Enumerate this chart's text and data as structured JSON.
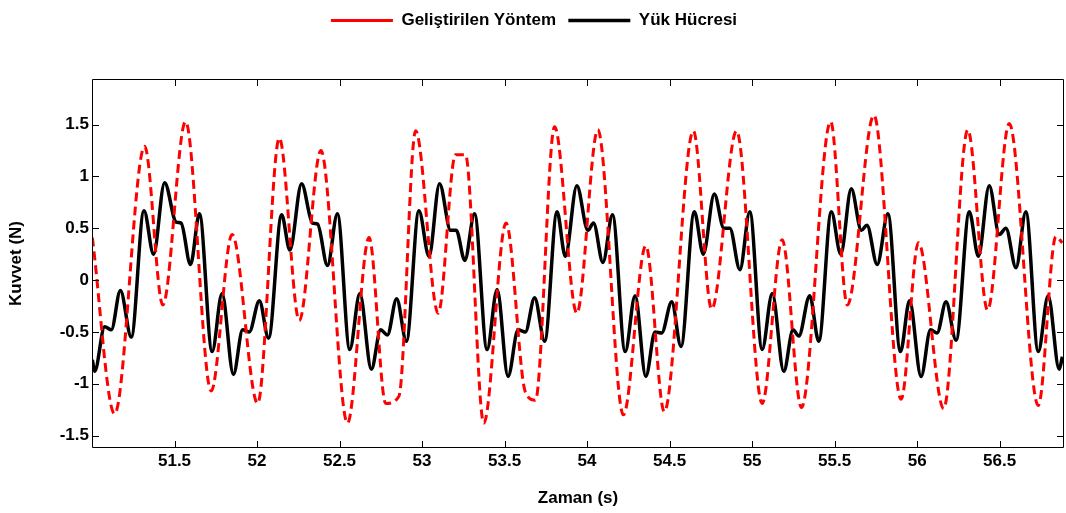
{
  "chart_data": {
    "type": "line",
    "xlabel": "Zaman (s)",
    "ylabel": "Kuvvet (N)",
    "legend": "top",
    "xlim": [
      51,
      56.89
    ],
    "ylim": [
      -1.62,
      1.94
    ],
    "xticks": [
      51.5,
      52,
      52.5,
      53,
      53.5,
      54,
      54.5,
      55,
      55.5,
      56,
      56.5
    ],
    "yticks": [
      -1.5,
      -1,
      -0.5,
      0,
      0.5,
      1,
      1.5
    ],
    "series": [
      {
        "name": "Geliştirilen Yöntem",
        "color": "#ff0000",
        "line_style": "dashed",
        "x": [
          51.002,
          51.137,
          51.319,
          51.429,
          51.567,
          51.722,
          51.849,
          52.004,
          52.135,
          52.256,
          52.387,
          52.548,
          52.679,
          52.78,
          52.86,
          52.961,
          53.098,
          53.203,
          53.263,
          53.374,
          53.509,
          53.626,
          53.687,
          53.803,
          53.938,
          54.065,
          54.22,
          54.356,
          54.468,
          54.644,
          54.755,
          54.906,
          55.061,
          55.182,
          55.299,
          55.476,
          55.577,
          55.738,
          55.903,
          56.008,
          56.161,
          56.307,
          56.427,
          56.558,
          56.734,
          56.841,
          56.88
        ],
        "values": [
          0.41,
          -1.29,
          1.29,
          -0.24,
          1.53,
          -1.07,
          0.44,
          -1.19,
          1.37,
          -0.39,
          1.25,
          -1.38,
          0.41,
          -1.19,
          -1.12,
          1.44,
          -0.32,
          1.21,
          1.21,
          -1.38,
          0.55,
          -1.08,
          -1.16,
          1.48,
          -0.32,
          1.45,
          -1.3,
          0.33,
          -1.27,
          1.44,
          -0.28,
          1.44,
          -1.19,
          0.39,
          -1.23,
          1.53,
          -0.24,
          1.59,
          -1.15,
          0.36,
          -1.24,
          1.45,
          -0.29,
          1.51,
          -1.21,
          0.42,
          0.36
        ]
      },
      {
        "name": "Yük Hücresi",
        "color": "#000000",
        "line_style": "solid",
        "x": [
          51.002,
          51.016,
          51.077,
          51.117,
          51.172,
          51.238,
          51.315,
          51.373,
          51.44,
          51.51,
          51.54,
          51.597,
          51.651,
          51.728,
          51.788,
          51.857,
          51.913,
          51.953,
          52.014,
          52.07,
          52.149,
          52.199,
          52.27,
          52.336,
          52.367,
          52.427,
          52.487,
          52.562,
          52.623,
          52.693,
          52.749,
          52.79,
          52.846,
          52.905,
          52.981,
          53.042,
          53.106,
          53.173,
          53.207,
          53.259,
          53.318,
          53.394,
          53.455,
          53.521,
          53.582,
          53.626,
          53.682,
          53.743,
          53.818,
          53.868,
          53.938,
          54.005,
          54.039,
          54.096,
          54.154,
          54.231,
          54.291,
          54.356,
          54.412,
          54.452,
          54.513,
          54.569,
          54.65,
          54.704,
          54.771,
          54.829,
          54.865,
          54.926,
          54.986,
          55.061,
          55.122,
          55.192,
          55.248,
          55.283,
          55.349,
          55.404,
          55.48,
          55.537,
          55.601,
          55.662,
          55.696,
          55.758,
          55.823,
          55.899,
          55.954,
          56.024,
          56.081,
          56.121,
          56.175,
          56.236,
          56.316,
          56.371,
          56.437,
          56.498,
          56.538,
          56.599,
          56.659,
          56.734,
          56.794,
          56.861,
          56.88
        ],
        "values": [
          -0.77,
          -0.88,
          -0.45,
          -0.48,
          -0.1,
          -0.55,
          0.67,
          0.25,
          0.94,
          0.56,
          0.55,
          0.15,
          0.64,
          -0.69,
          -0.13,
          -0.91,
          -0.48,
          -0.5,
          -0.2,
          -0.56,
          0.63,
          0.29,
          0.93,
          0.55,
          0.54,
          0.14,
          0.64,
          -0.67,
          -0.13,
          -0.86,
          -0.48,
          -0.53,
          -0.18,
          -0.59,
          0.67,
          0.23,
          0.93,
          0.48,
          0.48,
          0.19,
          0.64,
          -0.67,
          -0.09,
          -0.93,
          -0.48,
          -0.5,
          -0.17,
          -0.59,
          0.66,
          0.23,
          0.91,
          0.48,
          0.55,
          0.17,
          0.63,
          -0.69,
          -0.15,
          -0.93,
          -0.5,
          -0.51,
          -0.21,
          -0.64,
          0.66,
          0.25,
          0.83,
          0.5,
          0.5,
          0.1,
          0.66,
          -0.67,
          -0.13,
          -0.88,
          -0.48,
          -0.54,
          -0.15,
          -0.59,
          0.66,
          0.25,
          0.88,
          0.48,
          0.53,
          0.15,
          0.64,
          -0.69,
          -0.2,
          -0.93,
          -0.48,
          -0.51,
          -0.21,
          -0.58,
          0.66,
          0.23,
          0.91,
          0.44,
          0.5,
          0.12,
          0.66,
          -0.69,
          -0.15,
          -0.86,
          -0.74
        ]
      }
    ]
  }
}
